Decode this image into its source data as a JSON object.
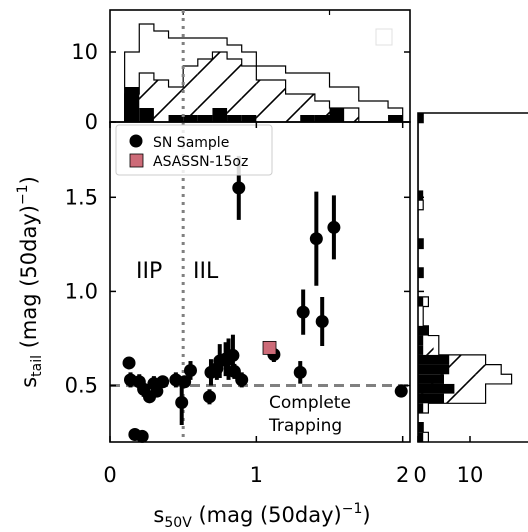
{
  "colors": {
    "axis": "#000000",
    "points": "#000000",
    "highlight": "#cd6b78",
    "reference": "#808080",
    "hatch_edge": "#000000"
  },
  "chart_data": [
    {
      "panel": "main",
      "type": "scatter",
      "xlabel_main": "s",
      "xlabel_sub": "50V",
      "xlabel_rest": " (mag (50day)",
      "xlabel_sup": "−1",
      "xlabel_close": ")",
      "ylabel_main": "s",
      "ylabel_sub": "tail",
      "ylabel_rest": " (mag (50day)",
      "ylabel_sup": "−1",
      "ylabel_close": ")",
      "xlim": [
        0,
        2.05
      ],
      "ylim": [
        0.2,
        1.9
      ],
      "xticks": [
        0,
        1,
        2
      ],
      "xtick_labels": [
        "0",
        "1",
        "2"
      ],
      "yticks": [
        0.5,
        1.0,
        1.5
      ],
      "ytick_labels": [
        "0.5",
        "1.0",
        "1.5"
      ],
      "legend": {
        "placement": "top-left",
        "entries": [
          "SN Sample",
          "ASASSN-15oz"
        ]
      },
      "region_labels": [
        "IIP",
        "IIL"
      ],
      "annotation": [
        "Complete",
        "Trapping"
      ],
      "vline_x": 0.5,
      "hline_y": 0.5,
      "series": [
        {
          "name": "SN Sample",
          "points": [
            {
              "x": 0.13,
              "y": 0.62,
              "yerr": 0.03
            },
            {
              "x": 0.14,
              "y": 0.53,
              "yerr": 0.04
            },
            {
              "x": 0.17,
              "y": 0.24,
              "yerr": 0.01
            },
            {
              "x": 0.2,
              "y": 0.52,
              "yerr": 0.04
            },
            {
              "x": 0.22,
              "y": 0.23,
              "yerr": 0.01
            },
            {
              "x": 0.23,
              "y": 0.48,
              "yerr": 0.04
            },
            {
              "x": 0.27,
              "y": 0.44,
              "yerr": 0.03
            },
            {
              "x": 0.3,
              "y": 0.51,
              "yerr": 0.04
            },
            {
              "x": 0.32,
              "y": 0.47,
              "yerr": 0.03
            },
            {
              "x": 0.36,
              "y": 0.52,
              "yerr": 0.03
            },
            {
              "x": 0.45,
              "y": 0.53,
              "yerr": 0.04
            },
            {
              "x": 0.49,
              "y": 0.41,
              "yerr": 0.12
            },
            {
              "x": 0.51,
              "y": 0.52,
              "yerr": 0.03
            },
            {
              "x": 0.55,
              "y": 0.58,
              "yerr": 0.05
            },
            {
              "x": 0.68,
              "y": 0.44,
              "yerr": 0.04
            },
            {
              "x": 0.69,
              "y": 0.57,
              "yerr": 0.07
            },
            {
              "x": 0.73,
              "y": 0.59,
              "yerr": 0.06
            },
            {
              "x": 0.75,
              "y": 0.63,
              "yerr": 0.09
            },
            {
              "x": 0.79,
              "y": 0.64,
              "yerr": 0.09
            },
            {
              "x": 0.81,
              "y": 0.64,
              "yerr": 0.11
            },
            {
              "x": 0.84,
              "y": 0.66,
              "yerr": 0.11
            },
            {
              "x": 0.85,
              "y": 0.575,
              "yerr": 0.04
            },
            {
              "x": 0.88,
              "y": 1.55,
              "yerr": 0.17
            },
            {
              "x": 0.9,
              "y": 0.53,
              "yerr": 0.04
            },
            {
              "x": 1.12,
              "y": 0.665,
              "yerr": 0.04
            },
            {
              "x": 1.3,
              "y": 0.57,
              "yerr": 0.06
            },
            {
              "x": 1.32,
              "y": 0.89,
              "yerr": 0.12
            },
            {
              "x": 1.41,
              "y": 1.28,
              "yerr": 0.25
            },
            {
              "x": 1.45,
              "y": 0.84,
              "yerr": 0.13
            },
            {
              "x": 1.53,
              "y": 1.34,
              "yerr": 0.17
            },
            {
              "x": 1.99,
              "y": 0.47,
              "yerr": 0.01
            }
          ]
        },
        {
          "name": "ASASSN-15oz",
          "points": [
            {
              "x": 1.09,
              "y": 0.7,
              "yerr": 0.0
            }
          ]
        }
      ]
    },
    {
      "panel": "top-histogram",
      "type": "bar",
      "xlim": [
        0,
        2.05
      ],
      "ylim": [
        0,
        16
      ],
      "yticks": [
        0,
        10
      ],
      "ytick_labels": [
        "0",
        "10"
      ],
      "bin_edges": [
        0.1,
        0.2,
        0.3,
        0.4,
        0.5,
        0.6,
        0.7,
        0.8,
        0.9,
        1.0,
        1.1,
        1.2,
        1.3,
        1.4,
        1.5,
        1.6,
        1.7,
        1.8,
        1.9,
        2.0
      ],
      "counts_outline": [
        10,
        14,
        13,
        12,
        12,
        12,
        12,
        11,
        10,
        8,
        8,
        7,
        7,
        7,
        5,
        5,
        3,
        3,
        2
      ],
      "counts_hatched": [
        4,
        7,
        6,
        5,
        8,
        9,
        10,
        9,
        8,
        6,
        6,
        4,
        4,
        3,
        2,
        2,
        0,
        0,
        0
      ],
      "counts_filled": [
        5,
        2,
        0,
        1,
        1,
        1,
        2,
        1,
        1,
        0,
        0,
        0,
        1,
        1,
        2,
        0,
        0,
        0,
        1
      ]
    },
    {
      "panel": "right-histogram",
      "type": "bar",
      "orientation": "horizontal",
      "ylim": [
        0.2,
        1.9
      ],
      "xticks": [
        0,
        10
      ],
      "xtick_labels": [
        "0",
        "10"
      ],
      "bin_edges": [
        0.2,
        0.25,
        0.3,
        0.35,
        0.4,
        0.45,
        0.5,
        0.55,
        0.6,
        0.65,
        0.7,
        0.75,
        0.8,
        0.85,
        0.9,
        0.95,
        1.0,
        1.05,
        1.1,
        1.15,
        1.2,
        1.25,
        1.3,
        1.35,
        1.4,
        1.45,
        1.5,
        1.55,
        1.6,
        1.65,
        1.7,
        1.75,
        1.8,
        1.85,
        1.9
      ],
      "counts_outline": [
        2,
        1,
        0,
        2,
        13,
        13,
        18,
        16,
        13,
        4,
        4,
        2,
        1,
        1,
        2,
        0,
        0,
        1,
        0,
        0,
        1,
        0,
        0,
        0,
        1,
        0,
        0,
        0,
        0,
        0,
        0,
        0,
        0,
        1
      ],
      "counts_hatched": [
        0,
        0,
        0,
        0,
        11,
        11,
        14,
        14,
        11,
        3,
        3,
        0,
        0,
        0,
        0,
        0,
        0,
        0,
        0,
        0,
        0,
        0,
        0,
        0,
        0,
        0,
        0,
        0,
        0,
        0,
        0,
        0,
        0,
        0
      ],
      "counts_filled": [
        1,
        1,
        0,
        1,
        5,
        7,
        5,
        6,
        6,
        1,
        1,
        2,
        0,
        0,
        1,
        0,
        0,
        1,
        0,
        0,
        1,
        0,
        0,
        0,
        0,
        1,
        0,
        0,
        0,
        0,
        0,
        0,
        0,
        1
      ]
    }
  ]
}
